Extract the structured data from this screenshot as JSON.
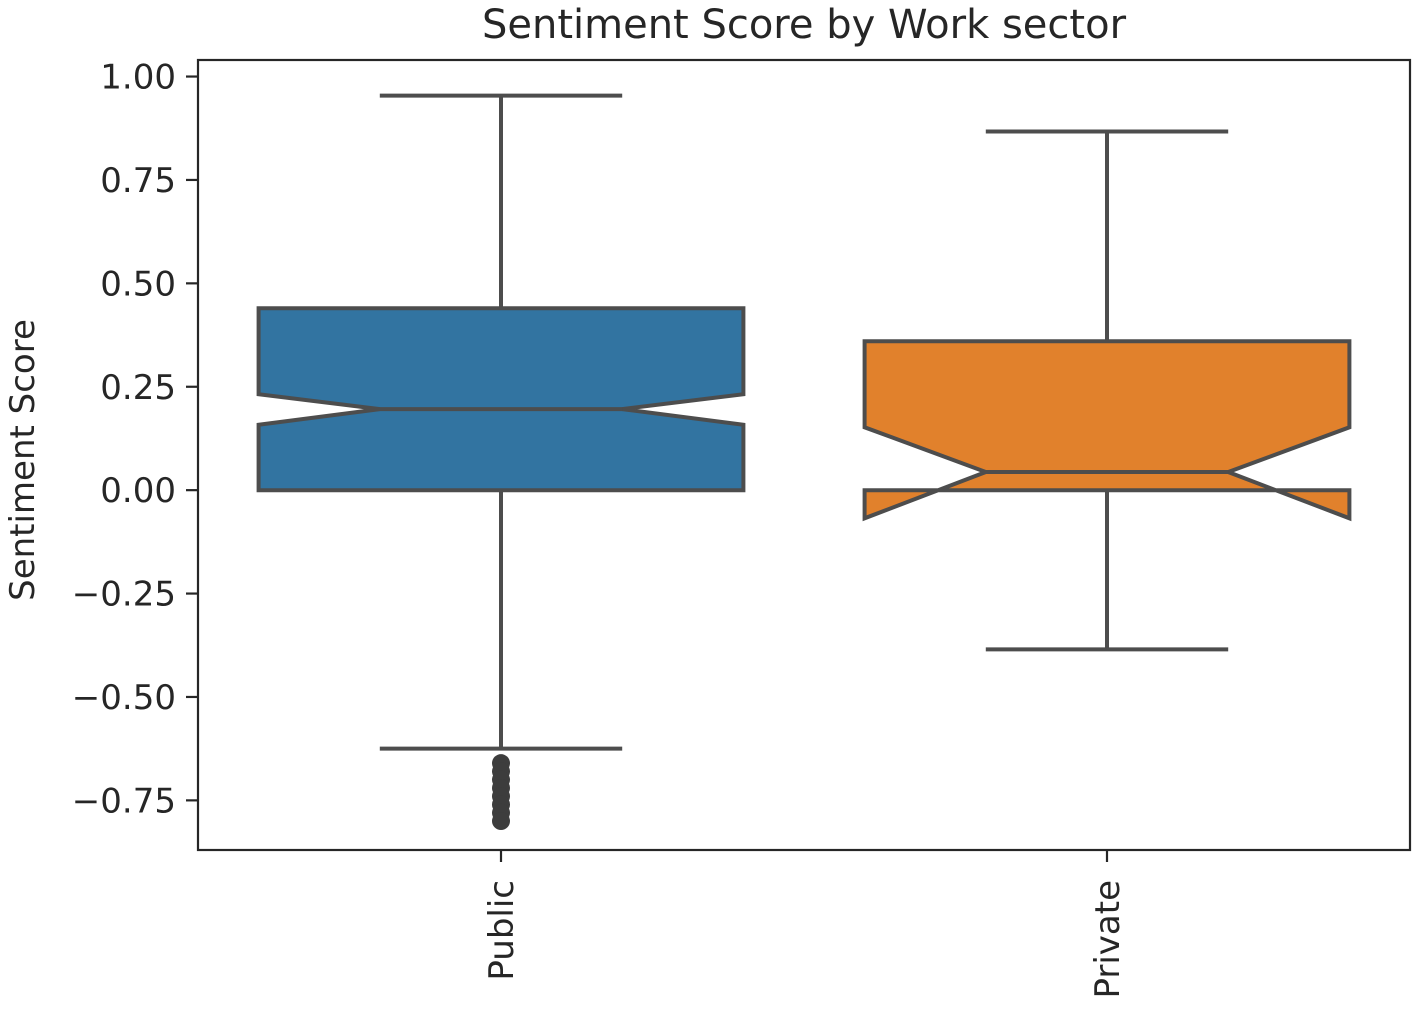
{
  "chart_data": {
    "type": "box",
    "title": "Sentiment Score by Work sector",
    "xlabel": "",
    "ylabel": "Sentiment Score",
    "ylim": [
      -0.87,
      1.04
    ],
    "yticks": [
      1.0,
      0.75,
      0.5,
      0.25,
      0.0,
      -0.25,
      -0.5,
      -0.75
    ],
    "ytick_labels": [
      "1.00",
      "0.75",
      "0.50",
      "0.25",
      "0.00",
      "−0.25",
      "−0.50",
      "−0.75"
    ],
    "notched": true,
    "categories": [
      "Public",
      "Private"
    ],
    "boxes": [
      {
        "category": "Public",
        "color": "#3274a1",
        "whisker_low": -0.625,
        "q1": 0.0,
        "notch_low": 0.158,
        "median": 0.196,
        "notch_high": 0.232,
        "q3": 0.44,
        "whisker_high": 0.954,
        "outliers": [
          -0.66,
          -0.68,
          -0.7,
          -0.72,
          -0.74,
          -0.76,
          -0.78,
          -0.8
        ]
      },
      {
        "category": "Private",
        "color": "#e1812c",
        "whisker_low": -0.385,
        "q1": 0.0,
        "notch_low": -0.068,
        "median": 0.044,
        "notch_high": 0.152,
        "q3": 0.36,
        "whisker_high": 0.867,
        "outliers": []
      }
    ],
    "grid": false,
    "legend": "none"
  }
}
